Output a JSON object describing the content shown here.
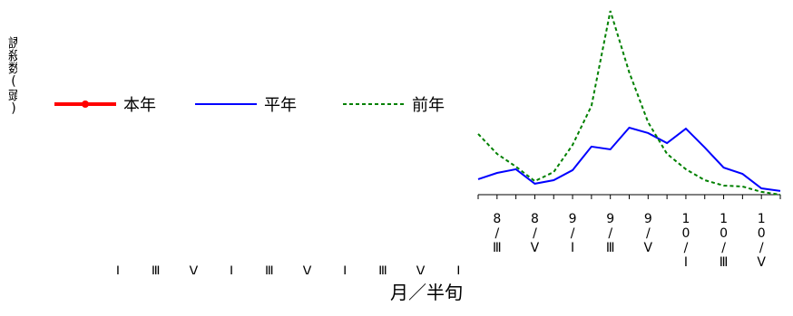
{
  "chart_data": {
    "type": "line",
    "y_label": "誘殺数(頭)",
    "x_label": "月／半旬",
    "categories": [
      null,
      "8/Ⅲ",
      null,
      "8/Ⅴ",
      null,
      "9/Ⅰ",
      null,
      "9/Ⅲ",
      null,
      "9/Ⅴ",
      null,
      "10/Ⅰ",
      null,
      "10/Ⅲ",
      null,
      "10/Ⅴ",
      null
    ],
    "clipped_tick_labels": [
      "Ⅰ",
      "Ⅲ",
      "Ⅴ",
      "Ⅰ",
      "Ⅲ",
      "Ⅴ",
      "Ⅰ",
      "Ⅲ",
      "Ⅴ",
      "Ⅰ"
    ],
    "ylim": [
      0,
      100
    ],
    "series": [
      {
        "name": "本年",
        "color": "#ff0000",
        "style": "solid-marker",
        "values": [
          null,
          null,
          null,
          null,
          null,
          null,
          null,
          null,
          null,
          null,
          null,
          null,
          null,
          null,
          null,
          null,
          null
        ]
      },
      {
        "name": "平年",
        "color": "#0000ff",
        "style": "solid",
        "values": [
          8.3,
          11.7,
          13.7,
          5.9,
          7.8,
          13.2,
          25.9,
          24.4,
          36.1,
          33.2,
          27.8,
          35.6,
          25.4,
          14.6,
          11.2,
          3.4,
          2.0
        ]
      },
      {
        "name": "前年",
        "color": "#008000",
        "style": "dashed",
        "values": [
          32.7,
          22.0,
          15.1,
          7.3,
          12.2,
          26.8,
          47.8,
          99.0,
          65.9,
          39.0,
          22.0,
          13.7,
          7.8,
          4.9,
          4.4,
          1.5,
          0.0
        ]
      }
    ]
  }
}
